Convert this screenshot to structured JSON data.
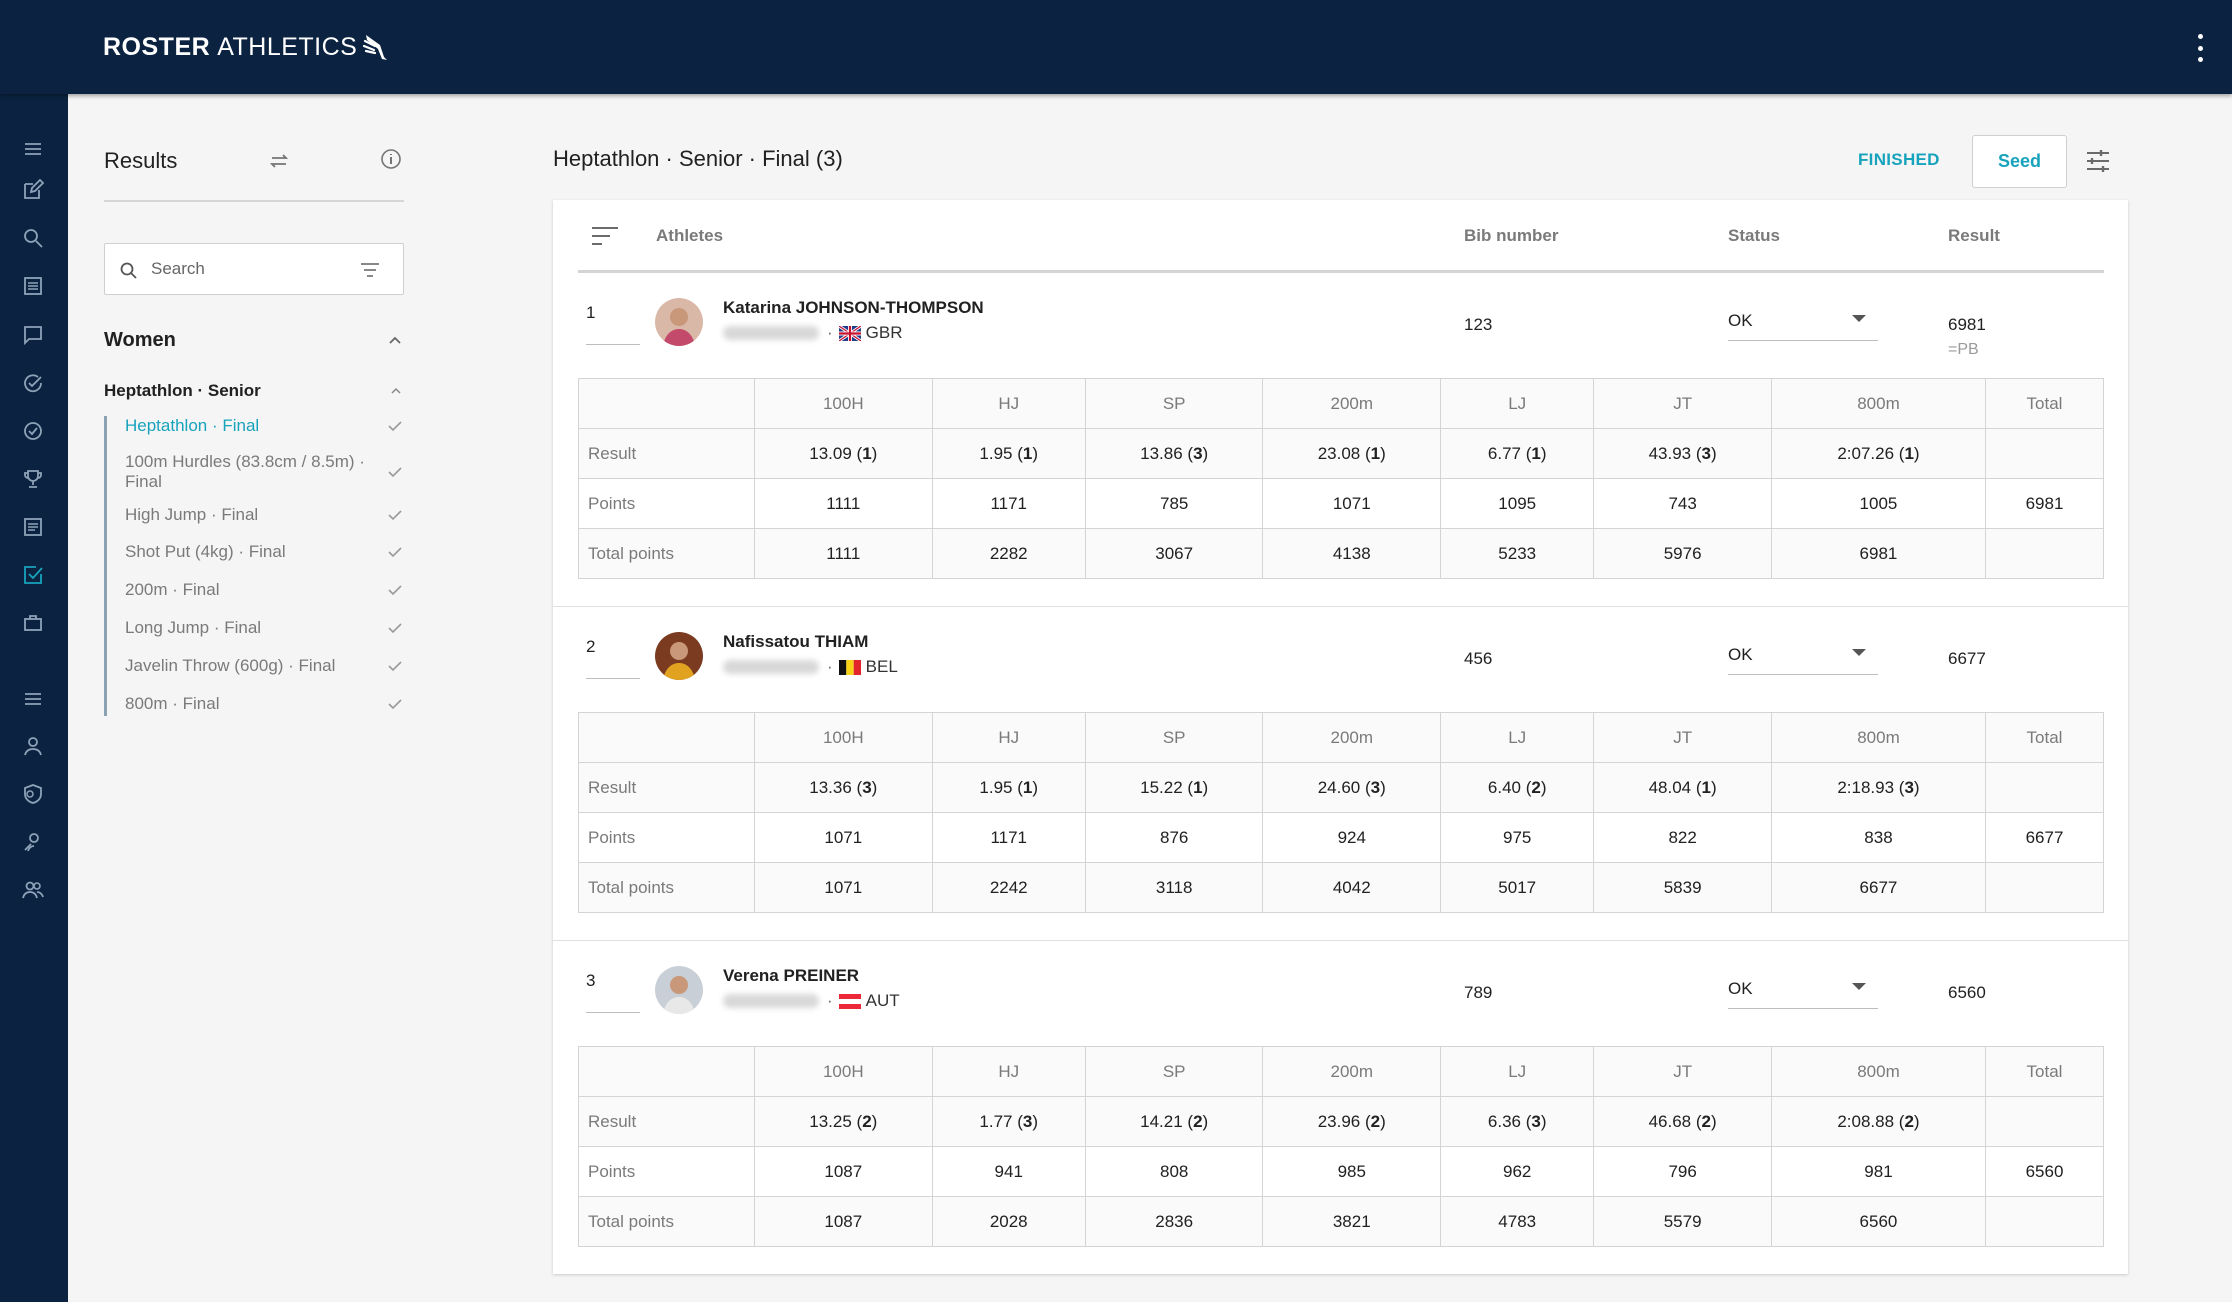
{
  "app": {
    "brand_bold": "ROSTER",
    "brand_light": "ATHLETICS"
  },
  "sidebar": {
    "title": "Results",
    "search_placeholder": "Search",
    "group": "Women",
    "subgroup": "Heptathlon · Senior",
    "items": [
      {
        "label": "Heptathlon · Final",
        "active": true
      },
      {
        "label": "100m Hurdles (83.8cm / 8.5m) · Final"
      },
      {
        "label": "High Jump · Final"
      },
      {
        "label": "Shot Put (4kg) · Final"
      },
      {
        "label": "200m · Final"
      },
      {
        "label": "Long Jump · Final"
      },
      {
        "label": "Javelin Throw (600g) · Final"
      },
      {
        "label": "800m · Final"
      }
    ]
  },
  "main": {
    "title": "Heptathlon · Senior · Final (3)",
    "status_label": "FINISHED",
    "seed_label": "Seed",
    "columns": {
      "athletes": "Athletes",
      "bib": "Bib number",
      "status": "Status",
      "result": "Result"
    },
    "events": [
      "100H",
      "HJ",
      "SP",
      "200m",
      "LJ",
      "JT",
      "800m"
    ],
    "total_label": "Total",
    "row_labels": {
      "result": "Result",
      "points": "Points",
      "total_points": "Total points"
    },
    "athletes": [
      {
        "rank": "1",
        "name": "Katarina JOHNSON-THOMPSON",
        "country": "GBR",
        "bib": "123",
        "status": "OK",
        "result": "6981",
        "note": "=PB",
        "results": [
          [
            "13.09",
            "1"
          ],
          [
            "1.95",
            "1"
          ],
          [
            "13.86",
            "3"
          ],
          [
            "23.08",
            "1"
          ],
          [
            "6.77",
            "1"
          ],
          [
            "43.93",
            "3"
          ],
          [
            "2:07.26",
            "1"
          ]
        ],
        "points": [
          "1111",
          "1171",
          "785",
          "1071",
          "1095",
          "743",
          "1005"
        ],
        "points_total": "6981",
        "cumulative": [
          "1111",
          "2282",
          "3067",
          "4138",
          "5233",
          "5976",
          "6981"
        ]
      },
      {
        "rank": "2",
        "name": "Nafissatou THIAM",
        "country": "BEL",
        "bib": "456",
        "status": "OK",
        "result": "6677",
        "note": "",
        "results": [
          [
            "13.36",
            "3"
          ],
          [
            "1.95",
            "1"
          ],
          [
            "15.22",
            "1"
          ],
          [
            "24.60",
            "3"
          ],
          [
            "6.40",
            "2"
          ],
          [
            "48.04",
            "1"
          ],
          [
            "2:18.93",
            "3"
          ]
        ],
        "points": [
          "1071",
          "1171",
          "876",
          "924",
          "975",
          "822",
          "838"
        ],
        "points_total": "6677",
        "cumulative": [
          "1071",
          "2242",
          "3118",
          "4042",
          "5017",
          "5839",
          "6677"
        ]
      },
      {
        "rank": "3",
        "name": "Verena PREINER",
        "country": "AUT",
        "bib": "789",
        "status": "OK",
        "result": "6560",
        "note": "",
        "results": [
          [
            "13.25",
            "2"
          ],
          [
            "1.77",
            "3"
          ],
          [
            "14.21",
            "2"
          ],
          [
            "23.96",
            "2"
          ],
          [
            "6.36",
            "3"
          ],
          [
            "46.68",
            "2"
          ],
          [
            "2:08.88",
            "2"
          ]
        ],
        "points": [
          "1087",
          "941",
          "808",
          "985",
          "962",
          "796",
          "981"
        ],
        "points_total": "6560",
        "cumulative": [
          "1087",
          "2028",
          "2836",
          "3821",
          "4783",
          "5579",
          "6560"
        ]
      }
    ]
  },
  "colors": {
    "nav": "#0b2341",
    "accent": "#18a3bd"
  }
}
